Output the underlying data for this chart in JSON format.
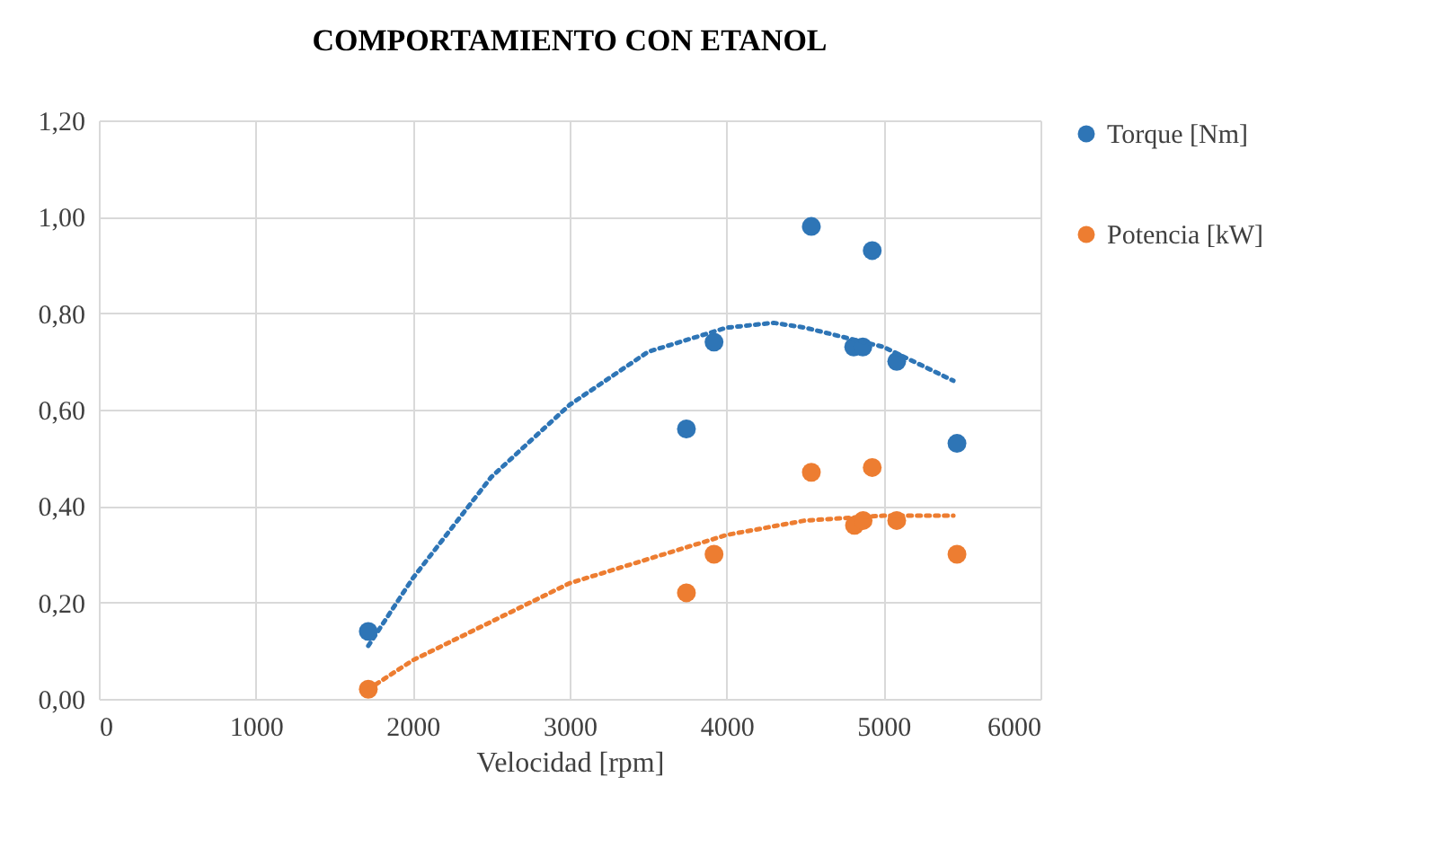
{
  "chart_data": {
    "type": "scatter",
    "title": "COMPORTAMIENTO CON ETANOL",
    "xlabel": "Velocidad [rpm]",
    "xlim": [
      0,
      6000
    ],
    "xticks": [
      0,
      1000,
      2000,
      3000,
      4000,
      5000,
      6000
    ],
    "ylim": [
      0,
      1.2
    ],
    "yticks": [
      {
        "value": 0,
        "label": "0,00"
      },
      {
        "value": 0.2,
        "label": "0,20"
      },
      {
        "value": 0.4,
        "label": "0,40"
      },
      {
        "value": 0.6,
        "label": "0,60"
      },
      {
        "value": 0.8,
        "label": "0,80"
      },
      {
        "value": 1.0,
        "label": "1,00"
      },
      {
        "value": 1.2,
        "label": "1,20"
      }
    ],
    "grid": true,
    "legend": "right",
    "series": [
      {
        "name": "Torque [Nm]",
        "color": "#2e75b6",
        "marker": "circle",
        "x": [
          1717,
          3744,
          3920,
          4540,
          4810,
          4868,
          4928,
          5084,
          5468
        ],
        "values": [
          0.14,
          0.56,
          0.74,
          0.98,
          0.73,
          0.73,
          0.93,
          0.7,
          0.53
        ]
      },
      {
        "name": "Potencia [kW]",
        "color": "#ed7d31",
        "marker": "circle",
        "x": [
          1717,
          3744,
          3920,
          4540,
          4815,
          4870,
          4928,
          5084,
          5468
        ],
        "values": [
          0.02,
          0.22,
          0.3,
          0.47,
          0.36,
          0.37,
          0.48,
          0.37,
          0.3
        ]
      },
      {
        "type": "line",
        "color": "#2e75b6",
        "line_style": "dotted",
        "marker": "none",
        "x": [
          1717,
          2000,
          2500,
          3000,
          3500,
          4000,
          4300,
          4500,
          5000,
          5445
        ],
        "values": [
          0.11,
          0.25,
          0.46,
          0.61,
          0.72,
          0.77,
          0.78,
          0.77,
          0.73,
          0.66
        ]
      },
      {
        "type": "line",
        "color": "#ed7d31",
        "line_style": "dotted",
        "marker": "none",
        "x": [
          1717,
          2000,
          2500,
          3000,
          3500,
          4000,
          4500,
          5000,
          5445
        ],
        "values": [
          0.02,
          0.08,
          0.16,
          0.24,
          0.29,
          0.34,
          0.37,
          0.38,
          0.38
        ]
      }
    ]
  }
}
